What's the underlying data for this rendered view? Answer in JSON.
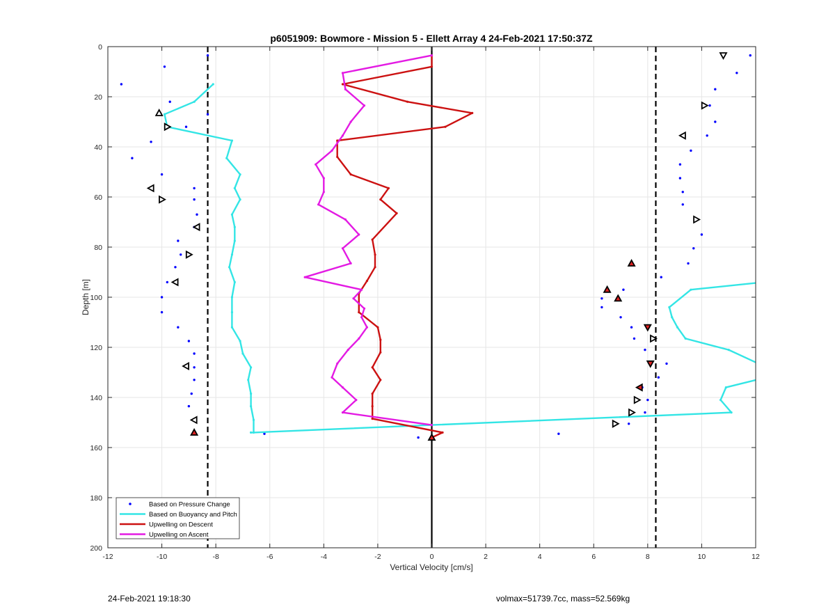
{
  "footer": {
    "left": "24-Feb-2021 19:18:30",
    "right": "volmax=51739.7cc, mass=52.569kg"
  },
  "chart_data": {
    "type": "line",
    "title": "p6051909: Bowmore - Mission 5 - Ellett Array 4 24-Feb-2021 17:50:37Z",
    "xlabel": "Vertical Velocity [cm/s]",
    "ylabel": "Depth [m]",
    "xlim": [
      -12,
      12
    ],
    "ylim": [
      200,
      0
    ],
    "y_reversed": true,
    "grid": true,
    "xticks": [
      -12,
      -10,
      -8,
      -6,
      -4,
      -2,
      0,
      2,
      4,
      6,
      8,
      10,
      12
    ],
    "yticks": [
      0,
      20,
      40,
      60,
      80,
      100,
      120,
      140,
      160,
      180,
      200
    ],
    "vlines": [
      {
        "x": -8.3,
        "style": "dashed"
      },
      {
        "x": 0,
        "style": "solid"
      },
      {
        "x": 8.3,
        "style": "dashed"
      }
    ],
    "legend_position": "bottom-left",
    "series": [
      {
        "name": "Based on Pressure Change",
        "kind": "dots",
        "color": "#0000ff",
        "points": [
          [
            -8.3,
            3.5
          ],
          [
            -9.9,
            8
          ],
          [
            -11.5,
            15
          ],
          [
            -9.7,
            22
          ],
          [
            -8.3,
            27
          ],
          [
            -9.1,
            32
          ],
          [
            -10.4,
            38
          ],
          [
            -11.1,
            44.5
          ],
          [
            -10,
            51
          ],
          [
            -8.8,
            56.5
          ],
          [
            -8.8,
            61
          ],
          [
            -8.7,
            67
          ],
          [
            -8.8,
            72
          ],
          [
            -9.4,
            77.5
          ],
          [
            -9.3,
            83
          ],
          [
            -9.5,
            88
          ],
          [
            -9.8,
            94
          ],
          [
            -10,
            100
          ],
          [
            -10,
            106
          ],
          [
            -9.4,
            112
          ],
          [
            -9,
            117.5
          ],
          [
            -8.8,
            122.5
          ],
          [
            -8.8,
            128
          ],
          [
            -8.8,
            133
          ],
          [
            -8.9,
            138.5
          ],
          [
            -9,
            143.5
          ],
          [
            -8.8,
            149
          ],
          [
            -8.8,
            154
          ],
          [
            -6.2,
            154.5
          ],
          [
            -0.5,
            156
          ],
          [
            0,
            156
          ],
          [
            11.8,
            3.5
          ],
          [
            11.3,
            10.5
          ],
          [
            10.5,
            17
          ],
          [
            10.3,
            23.5
          ],
          [
            10.5,
            30
          ],
          [
            10.2,
            35.5
          ],
          [
            9.6,
            41.5
          ],
          [
            9.2,
            47
          ],
          [
            9.2,
            52.5
          ],
          [
            9.3,
            58
          ],
          [
            9.3,
            63
          ],
          [
            9.8,
            69
          ],
          [
            10,
            75
          ],
          [
            9.7,
            80.5
          ],
          [
            9.5,
            86.5
          ],
          [
            8.5,
            92
          ],
          [
            7.1,
            97
          ],
          [
            6.3,
            100.5
          ],
          [
            6.3,
            104
          ],
          [
            7,
            108
          ],
          [
            7.4,
            112
          ],
          [
            7.5,
            116.5
          ],
          [
            7.9,
            121
          ],
          [
            8.7,
            126.5
          ],
          [
            8.4,
            132
          ],
          [
            7.8,
            136
          ],
          [
            8,
            141
          ],
          [
            7.9,
            146
          ],
          [
            7.3,
            150.5
          ],
          [
            4.7,
            154.5
          ]
        ]
      },
      {
        "name": "Based on Buoyancy and Pitch",
        "kind": "line",
        "color": "#33e5e5",
        "points": [
          [
            -8.1,
            15
          ],
          [
            -8.8,
            22
          ],
          [
            -9.9,
            27
          ],
          [
            -9.8,
            32
          ],
          [
            -7.4,
            37.5
          ],
          [
            -7.6,
            44.5
          ],
          [
            -7.1,
            51
          ],
          [
            -7.3,
            56.5
          ],
          [
            -7.1,
            61
          ],
          [
            -7.4,
            67
          ],
          [
            -7.3,
            72
          ],
          [
            -7.3,
            77.5
          ],
          [
            -7.4,
            83
          ],
          [
            -7.5,
            88
          ],
          [
            -7.3,
            94
          ],
          [
            -7.4,
            100
          ],
          [
            -7.4,
            106
          ],
          [
            -7.4,
            112
          ],
          [
            -7.1,
            117.5
          ],
          [
            -7,
            122.5
          ],
          [
            -6.7,
            128
          ],
          [
            -6.8,
            133
          ],
          [
            -6.7,
            138.5
          ],
          [
            -6.7,
            143.5
          ],
          [
            -6.6,
            149
          ],
          [
            -6.6,
            154
          ],
          [
            -6.7,
            154
          ],
          [
            -6.6,
            154
          ],
          [
            0,
            151
          ],
          [
            11.1,
            146
          ],
          [
            10.7,
            141
          ],
          [
            10.9,
            136
          ],
          [
            12.4,
            132
          ],
          [
            12.2,
            127
          ],
          [
            11,
            121
          ],
          [
            9.4,
            116.5
          ],
          [
            9.1,
            112
          ],
          [
            8.9,
            108
          ],
          [
            8.8,
            104
          ],
          [
            9.6,
            97
          ],
          [
            12.3,
            94
          ]
        ]
      },
      {
        "name": "Upwelling on Descent",
        "kind": "line",
        "color": "#cc1111",
        "points": [
          [
            0,
            3.5
          ],
          [
            0,
            8
          ],
          [
            -3.3,
            15
          ],
          [
            -0.9,
            22
          ],
          [
            1.5,
            26.5
          ],
          [
            0.5,
            32
          ],
          [
            -3.5,
            37.5
          ],
          [
            -3.5,
            44
          ],
          [
            -3,
            51
          ],
          [
            -1.6,
            56.5
          ],
          [
            -1.9,
            61
          ],
          [
            -1.3,
            66.5
          ],
          [
            -2.2,
            77
          ],
          [
            -2.1,
            83
          ],
          [
            -2.1,
            88
          ],
          [
            -2.4,
            93.5
          ],
          [
            -2.7,
            98.5
          ],
          [
            -2.7,
            106
          ],
          [
            -2,
            112
          ],
          [
            -1.9,
            117
          ],
          [
            -1.9,
            122
          ],
          [
            -2.2,
            128
          ],
          [
            -1.9,
            133
          ],
          [
            -2.2,
            138.5
          ],
          [
            -2.2,
            143.5
          ],
          [
            -2.2,
            148.5
          ],
          [
            0.4,
            154
          ],
          [
            0,
            156
          ]
        ]
      },
      {
        "name": "Upwelling on Ascent",
        "kind": "line",
        "color": "#e31ae3",
        "points": [
          [
            0,
            3.5
          ],
          [
            -3.3,
            10.5
          ],
          [
            -3.2,
            17
          ],
          [
            -2.5,
            23.5
          ],
          [
            -3,
            30
          ],
          [
            -3.3,
            35.5
          ],
          [
            -3.7,
            41.5
          ],
          [
            -4.3,
            47
          ],
          [
            -4,
            52.5
          ],
          [
            -4,
            58
          ],
          [
            -4.2,
            63
          ],
          [
            -3.2,
            69
          ],
          [
            -2.7,
            75
          ],
          [
            -3.3,
            80.5
          ],
          [
            -3,
            86.5
          ],
          [
            -4.7,
            92
          ],
          [
            -2.6,
            97
          ],
          [
            -2.9,
            100.5
          ],
          [
            -2.5,
            104.5
          ],
          [
            -2.6,
            108
          ],
          [
            -2.4,
            112
          ],
          [
            -2.7,
            116.5
          ],
          [
            -3.1,
            121
          ],
          [
            -3.5,
            126.5
          ],
          [
            -3.7,
            132
          ],
          [
            -3.3,
            136
          ],
          [
            -2.8,
            141
          ],
          [
            -3.3,
            146
          ],
          [
            0,
            151
          ]
        ]
      }
    ],
    "marker_points": [
      {
        "x": 10.8,
        "y": 3.5,
        "shape": "tri-down",
        "color": "none"
      },
      {
        "x": -10.1,
        "y": 26.5,
        "shape": "tri-up",
        "color": "none"
      },
      {
        "x": 10.1,
        "y": 23.5,
        "shape": "tri-right",
        "color": "none"
      },
      {
        "x": -9.8,
        "y": 32,
        "shape": "tri-right",
        "color": "none"
      },
      {
        "x": 9.3,
        "y": 35.5,
        "shape": "tri-left",
        "color": "none"
      },
      {
        "x": -10.4,
        "y": 56.5,
        "shape": "tri-left",
        "color": "none"
      },
      {
        "x": -10,
        "y": 61,
        "shape": "tri-right",
        "color": "none"
      },
      {
        "x": 9.8,
        "y": 69,
        "shape": "tri-right",
        "color": "none"
      },
      {
        "x": -8.7,
        "y": 72,
        "shape": "tri-left",
        "color": "none"
      },
      {
        "x": -9,
        "y": 83,
        "shape": "tri-right",
        "color": "none"
      },
      {
        "x": 7.4,
        "y": 86.5,
        "shape": "tri-up",
        "color": "#dd2222"
      },
      {
        "x": -9.5,
        "y": 94,
        "shape": "tri-left",
        "color": "none"
      },
      {
        "x": 6.5,
        "y": 97,
        "shape": "tri-up",
        "color": "#dd2222"
      },
      {
        "x": 6.9,
        "y": 100.5,
        "shape": "tri-up",
        "color": "#dd2222"
      },
      {
        "x": 8,
        "y": 112,
        "shape": "tri-down",
        "color": "#dd2222"
      },
      {
        "x": 8.2,
        "y": 116.5,
        "shape": "tri-right",
        "color": "none"
      },
      {
        "x": -9.1,
        "y": 127.5,
        "shape": "tri-left",
        "color": "none"
      },
      {
        "x": 8.1,
        "y": 126.5,
        "shape": "tri-down",
        "color": "#dd2222"
      },
      {
        "x": 7.7,
        "y": 136,
        "shape": "tri-left",
        "color": "#dd2222"
      },
      {
        "x": 7.6,
        "y": 141,
        "shape": "tri-right",
        "color": "none"
      },
      {
        "x": 7.4,
        "y": 146,
        "shape": "tri-right",
        "color": "none"
      },
      {
        "x": -8.8,
        "y": 149,
        "shape": "tri-left",
        "color": "none"
      },
      {
        "x": 6.8,
        "y": 150.5,
        "shape": "tri-right",
        "color": "none"
      },
      {
        "x": -8.8,
        "y": 154,
        "shape": "tri-up",
        "color": "#dd2222"
      },
      {
        "x": 0,
        "y": 156,
        "shape": "tri-up",
        "color": "#dd2222"
      }
    ]
  }
}
